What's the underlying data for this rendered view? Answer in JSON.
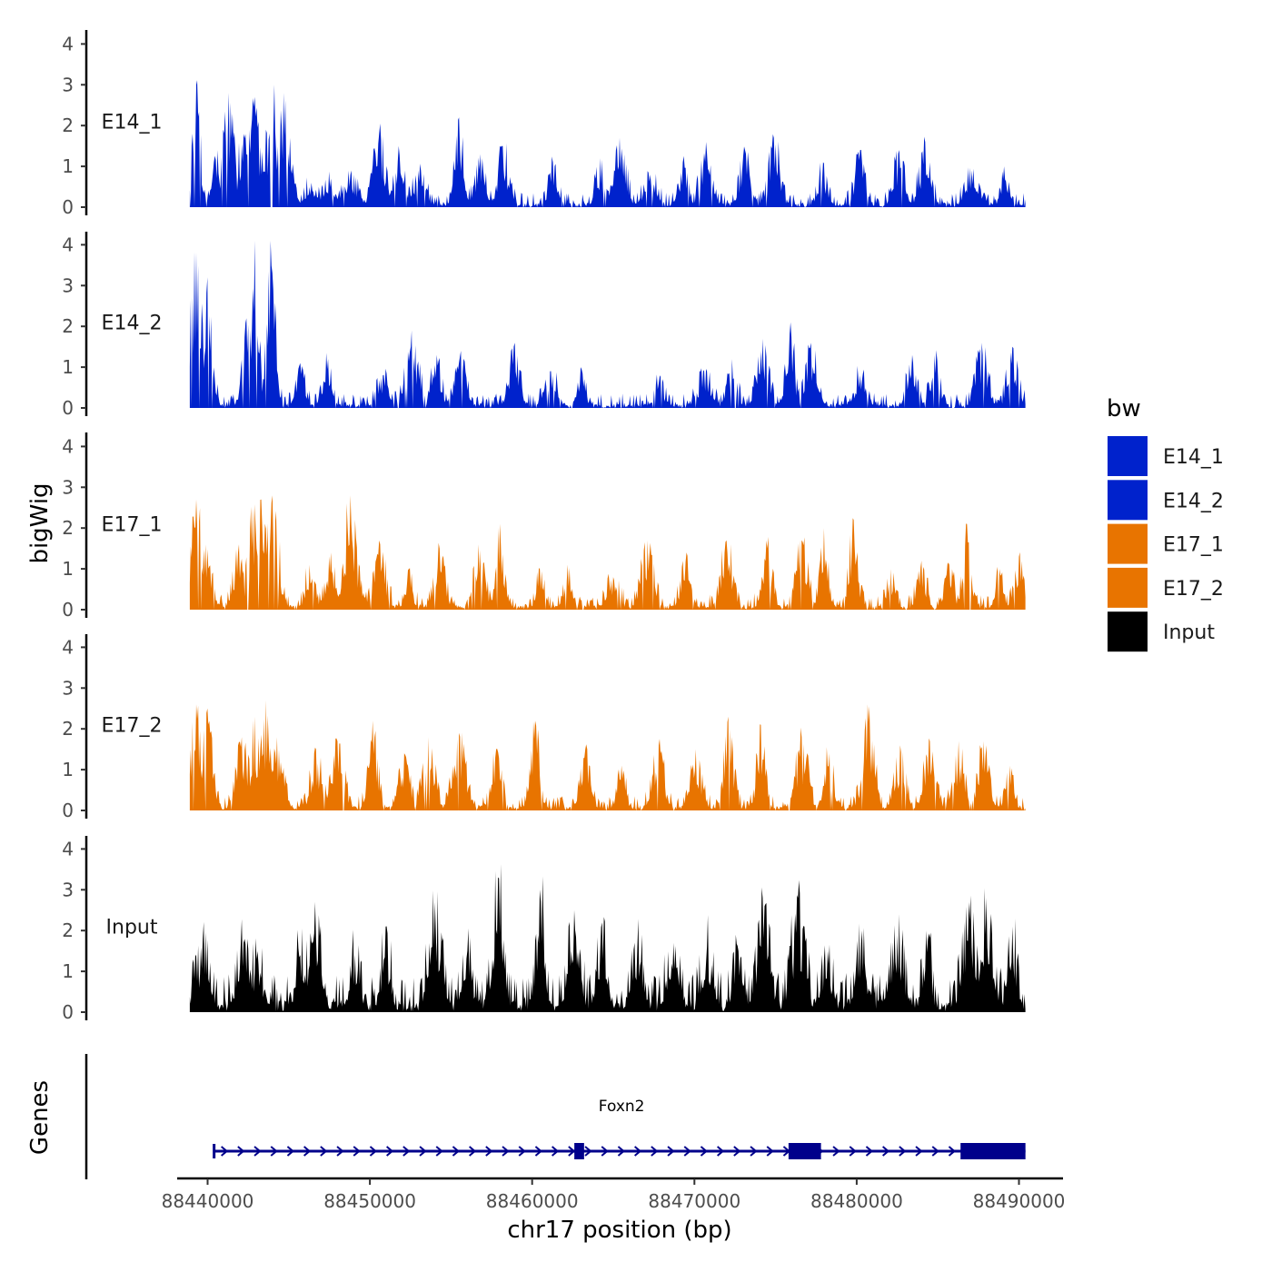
{
  "chart_data": {
    "type": "area",
    "y_axis_title": "bigWig",
    "x_axis_title": "chr17 position (bp)",
    "x_range": [
      88438000,
      88491000
    ],
    "y_range": [
      0,
      4.3
    ],
    "y_ticks": [
      0,
      1,
      2,
      3,
      4
    ],
    "x_ticks": [
      88440000,
      88450000,
      88460000,
      88470000,
      88480000,
      88490000
    ],
    "x_tick_labels": [
      "88440000",
      "88450000",
      "88460000",
      "88470000",
      "88480000",
      "88490000"
    ],
    "legend": {
      "title": "bw",
      "position": "right",
      "entries": [
        {
          "label": "E14_1",
          "color": "#0022CC"
        },
        {
          "label": "E14_2",
          "color": "#0022CC"
        },
        {
          "label": "E17_1",
          "color": "#E87400"
        },
        {
          "label": "E17_2",
          "color": "#E87400"
        },
        {
          "label": "Input",
          "color": "#000000"
        }
      ]
    },
    "tracks": [
      {
        "name": "E14_1",
        "color": "#0022CC",
        "x_start": 88438900,
        "x_end": 88490400,
        "peaks": [
          {
            "x": 88439300,
            "y": 3.0
          },
          {
            "x": 88440600,
            "y": 1.4
          },
          {
            "x": 88441300,
            "y": 2.8
          },
          {
            "x": 88442200,
            "y": 1.8
          },
          {
            "x": 88442900,
            "y": 2.7
          },
          {
            "x": 88443600,
            "y": 1.9
          },
          {
            "x": 88444100,
            "y": 3.0
          },
          {
            "x": 88444700,
            "y": 2.8
          },
          {
            "x": 88446400,
            "y": 0.6
          },
          {
            "x": 88447600,
            "y": 0.7
          },
          {
            "x": 88448800,
            "y": 0.8
          },
          {
            "x": 88450600,
            "y": 1.8
          },
          {
            "x": 88451800,
            "y": 1.5
          },
          {
            "x": 88453000,
            "y": 0.9
          },
          {
            "x": 88455500,
            "y": 2.2
          },
          {
            "x": 88456800,
            "y": 1.3
          },
          {
            "x": 88458200,
            "y": 1.5
          },
          {
            "x": 88461300,
            "y": 1.1
          },
          {
            "x": 88464200,
            "y": 1.2
          },
          {
            "x": 88465400,
            "y": 1.7
          },
          {
            "x": 88467300,
            "y": 0.8
          },
          {
            "x": 88469300,
            "y": 1.1
          },
          {
            "x": 88470700,
            "y": 1.6
          },
          {
            "x": 88473100,
            "y": 1.4
          },
          {
            "x": 88474900,
            "y": 1.7
          },
          {
            "x": 88477900,
            "y": 1.1
          },
          {
            "x": 88480200,
            "y": 1.4
          },
          {
            "x": 88482600,
            "y": 1.4
          },
          {
            "x": 88484200,
            "y": 1.6
          },
          {
            "x": 88487100,
            "y": 0.9
          },
          {
            "x": 88489100,
            "y": 1.0
          }
        ]
      },
      {
        "name": "E14_2",
        "color": "#0022CC",
        "x_start": 88438900,
        "x_end": 88490400,
        "peaks": [
          {
            "x": 88439300,
            "y": 3.8
          },
          {
            "x": 88440000,
            "y": 3.2
          },
          {
            "x": 88442400,
            "y": 2.2
          },
          {
            "x": 88442900,
            "y": 4.1
          },
          {
            "x": 88443900,
            "y": 4.1
          },
          {
            "x": 88445700,
            "y": 1.1
          },
          {
            "x": 88447400,
            "y": 1.2
          },
          {
            "x": 88450800,
            "y": 0.8
          },
          {
            "x": 88452600,
            "y": 1.9
          },
          {
            "x": 88454100,
            "y": 1.3
          },
          {
            "x": 88455600,
            "y": 1.4
          },
          {
            "x": 88458900,
            "y": 1.6
          },
          {
            "x": 88461100,
            "y": 0.9
          },
          {
            "x": 88463000,
            "y": 1.0
          },
          {
            "x": 88467800,
            "y": 0.6
          },
          {
            "x": 88470600,
            "y": 0.9
          },
          {
            "x": 88472300,
            "y": 1.2
          },
          {
            "x": 88474200,
            "y": 1.7
          },
          {
            "x": 88475900,
            "y": 2.1
          },
          {
            "x": 88477200,
            "y": 1.6
          },
          {
            "x": 88480200,
            "y": 0.8
          },
          {
            "x": 88483400,
            "y": 1.3
          },
          {
            "x": 88484800,
            "y": 1.3
          },
          {
            "x": 88487700,
            "y": 1.6
          },
          {
            "x": 88489600,
            "y": 1.5
          }
        ]
      },
      {
        "name": "E17_1",
        "color": "#E87400",
        "x_start": 88438900,
        "x_end": 88490400,
        "peaks": [
          {
            "x": 88439300,
            "y": 2.7
          },
          {
            "x": 88439900,
            "y": 1.6
          },
          {
            "x": 88441900,
            "y": 1.4
          },
          {
            "x": 88442800,
            "y": 2.5
          },
          {
            "x": 88443300,
            "y": 2.7
          },
          {
            "x": 88444000,
            "y": 2.8
          },
          {
            "x": 88446300,
            "y": 1.1
          },
          {
            "x": 88447600,
            "y": 1.4
          },
          {
            "x": 88448800,
            "y": 2.8
          },
          {
            "x": 88450600,
            "y": 1.7
          },
          {
            "x": 88452400,
            "y": 1.0
          },
          {
            "x": 88454300,
            "y": 1.5
          },
          {
            "x": 88456700,
            "y": 1.6
          },
          {
            "x": 88458000,
            "y": 2.1
          },
          {
            "x": 88460500,
            "y": 1.0
          },
          {
            "x": 88462200,
            "y": 1.1
          },
          {
            "x": 88465000,
            "y": 0.8
          },
          {
            "x": 88467100,
            "y": 1.7
          },
          {
            "x": 88469500,
            "y": 1.4
          },
          {
            "x": 88472000,
            "y": 1.7
          },
          {
            "x": 88474500,
            "y": 1.5
          },
          {
            "x": 88476600,
            "y": 1.7
          },
          {
            "x": 88478000,
            "y": 2.0
          },
          {
            "x": 88479800,
            "y": 2.2
          },
          {
            "x": 88482100,
            "y": 1.0
          },
          {
            "x": 88484000,
            "y": 1.2
          },
          {
            "x": 88485700,
            "y": 1.1
          },
          {
            "x": 88486800,
            "y": 2.1
          },
          {
            "x": 88488800,
            "y": 1.0
          },
          {
            "x": 88490000,
            "y": 1.3
          }
        ]
      },
      {
        "name": "E17_2",
        "color": "#E87400",
        "x_start": 88438900,
        "x_end": 88490400,
        "peaks": [
          {
            "x": 88439300,
            "y": 2.6
          },
          {
            "x": 88440000,
            "y": 2.5
          },
          {
            "x": 88442100,
            "y": 1.8
          },
          {
            "x": 88442900,
            "y": 2.3
          },
          {
            "x": 88443600,
            "y": 2.7
          },
          {
            "x": 88444300,
            "y": 1.8
          },
          {
            "x": 88446700,
            "y": 1.5
          },
          {
            "x": 88448000,
            "y": 1.7
          },
          {
            "x": 88450200,
            "y": 2.2
          },
          {
            "x": 88452100,
            "y": 1.4
          },
          {
            "x": 88453600,
            "y": 1.8
          },
          {
            "x": 88455500,
            "y": 1.9
          },
          {
            "x": 88457800,
            "y": 1.5
          },
          {
            "x": 88460200,
            "y": 2.2
          },
          {
            "x": 88463300,
            "y": 1.5
          },
          {
            "x": 88465500,
            "y": 1.1
          },
          {
            "x": 88467800,
            "y": 1.6
          },
          {
            "x": 88470100,
            "y": 1.5
          },
          {
            "x": 88472100,
            "y": 2.3
          },
          {
            "x": 88474100,
            "y": 2.1
          },
          {
            "x": 88476600,
            "y": 1.8
          },
          {
            "x": 88478300,
            "y": 1.4
          },
          {
            "x": 88480700,
            "y": 2.6
          },
          {
            "x": 88482700,
            "y": 1.6
          },
          {
            "x": 88484500,
            "y": 1.7
          },
          {
            "x": 88486300,
            "y": 1.7
          },
          {
            "x": 88487800,
            "y": 1.7
          },
          {
            "x": 88489400,
            "y": 1.1
          }
        ]
      },
      {
        "name": "Input",
        "color": "#000000",
        "x_start": 88438900,
        "x_end": 88490400,
        "peaks": [
          {
            "x": 88439700,
            "y": 1.8
          },
          {
            "x": 88442200,
            "y": 1.7
          },
          {
            "x": 88443100,
            "y": 1.5
          },
          {
            "x": 88445700,
            "y": 1.4
          },
          {
            "x": 88446600,
            "y": 2.7
          },
          {
            "x": 88449100,
            "y": 1.4
          },
          {
            "x": 88451000,
            "y": 2.1
          },
          {
            "x": 88454000,
            "y": 2.7
          },
          {
            "x": 88456000,
            "y": 1.5
          },
          {
            "x": 88457900,
            "y": 3.3
          },
          {
            "x": 88460500,
            "y": 3.0
          },
          {
            "x": 88462600,
            "y": 2.5
          },
          {
            "x": 88464300,
            "y": 2.2
          },
          {
            "x": 88466500,
            "y": 1.6
          },
          {
            "x": 88468700,
            "y": 1.7
          },
          {
            "x": 88470800,
            "y": 1.6
          },
          {
            "x": 88472700,
            "y": 1.5
          },
          {
            "x": 88474200,
            "y": 2.8
          },
          {
            "x": 88476400,
            "y": 2.8
          },
          {
            "x": 88478200,
            "y": 1.5
          },
          {
            "x": 88480300,
            "y": 1.7
          },
          {
            "x": 88482500,
            "y": 1.9
          },
          {
            "x": 88484300,
            "y": 2.0
          },
          {
            "x": 88486900,
            "y": 2.7
          },
          {
            "x": 88488000,
            "y": 2.8
          },
          {
            "x": 88489600,
            "y": 2.1
          }
        ]
      }
    ],
    "genes_track": {
      "label": "Genes",
      "gene_name": "Foxn2",
      "strand": "+",
      "color": "#00008B",
      "start": 88440400,
      "end": 88490400,
      "exons": [
        {
          "start": 88462600,
          "end": 88463200
        },
        {
          "start": 88475800,
          "end": 88477800
        },
        {
          "start": 88486400,
          "end": 88490400
        }
      ]
    }
  }
}
